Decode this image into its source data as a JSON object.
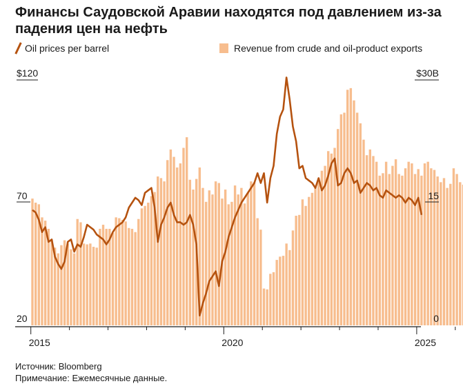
{
  "title": "Финансы Саудовской Аравии находятся под давлением из-за падения цен на нефть",
  "legend": {
    "line_label": "Oil prices per barrel",
    "bar_label": "Revenue from crude and oil-product exports"
  },
  "footer": {
    "source": "Источник: Bloomberg",
    "note": "Примечание: Ежемесячные данные."
  },
  "colors": {
    "line": "#b5520f",
    "bars": "#f7bd8e",
    "axis": "#1a1a1a"
  },
  "chart_data": {
    "type": "bar+line",
    "x_start": "2015-01",
    "x_ticks": [
      "2015",
      "2020",
      "2025"
    ],
    "left_axis": {
      "label_top": "$120",
      "ticks": [
        "70",
        "20"
      ],
      "range": [
        20,
        120
      ],
      "series": "Oil prices per barrel"
    },
    "right_axis": {
      "label_top": "$30B",
      "ticks": [
        "15",
        "0"
      ],
      "range": [
        0,
        30
      ],
      "series": "Revenue from crude and oil-product exports"
    },
    "series": [
      {
        "name": "Revenue from crude and oil-product exports",
        "type": "bar",
        "axis": "right",
        "values": [
          15.5,
          15.0,
          14.8,
          13.2,
          12.8,
          11.8,
          10.5,
          9.5,
          8.8,
          9.8,
          10.4,
          10.0,
          9.3,
          8.8,
          13.0,
          12.6,
          10.0,
          9.9,
          10.0,
          9.6,
          9.5,
          11.8,
          12.3,
          11.8,
          11.8,
          11.3,
          13.2,
          13.1,
          12.9,
          12.7,
          11.9,
          11.8,
          11.4,
          13.0,
          14.3,
          14.6,
          15.0,
          15.8,
          16.3,
          18.2,
          18.0,
          17.6,
          20.2,
          21.5,
          20.6,
          19.3,
          19.8,
          21.7,
          23.0,
          17.8,
          16.6,
          17.9,
          19.3,
          16.8,
          15.1,
          16.5,
          16.0,
          17.6,
          17.4,
          15.5,
          16.6,
          14.8,
          15.1,
          17.1,
          16.0,
          16.8,
          14.9,
          16.2,
          17.6,
          17.5,
          13.1,
          11.7,
          4.5,
          4.4,
          6.3,
          6.5,
          8.0,
          8.4,
          8.5,
          10.0,
          9.2,
          11.6,
          13.4,
          13.5,
          15.4,
          14.6,
          15.7,
          16.2,
          16.9,
          18.0,
          18.9,
          19.5,
          21.3,
          21.0,
          21.7,
          24.0,
          25.8,
          26.0,
          28.8,
          29.0,
          27.5,
          26.0,
          24.7,
          22.7,
          20.8,
          21.5,
          20.7,
          20.0,
          18.3,
          18.6,
          20.0,
          18.5,
          19.5,
          20.3,
          18.5,
          18.3,
          19.2,
          20.0,
          19.8,
          18.5,
          19.1,
          18.3,
          19.8,
          20.0,
          19.2,
          19.0,
          18.2,
          17.5,
          18.0,
          16.8,
          17.3,
          19.2,
          18.5,
          17.5,
          17.2,
          16.8
        ]
      },
      {
        "name": "Oil prices per barrel",
        "type": "line",
        "axis": "left",
        "values": [
          67,
          66,
          63,
          58,
          60,
          54,
          55,
          48,
          45,
          43,
          46,
          54,
          55,
          50,
          53,
          52,
          56,
          61,
          60,
          59,
          57,
          56,
          55,
          53,
          55,
          58,
          60,
          61,
          62,
          64,
          68,
          70,
          72,
          71,
          69,
          74,
          75,
          76,
          68,
          54,
          61,
          64,
          68,
          70,
          65,
          62,
          62,
          61,
          62,
          65,
          61,
          53,
          24,
          29,
          33,
          38,
          40,
          42,
          36,
          46,
          50,
          56,
          60,
          64,
          67,
          70,
          72,
          74,
          76,
          78,
          82,
          78,
          82,
          70,
          80,
          85,
          98,
          105,
          108,
          121,
          112,
          101,
          95,
          84,
          85,
          80,
          79,
          78,
          76,
          80,
          75,
          77,
          81,
          86,
          88,
          77,
          78,
          82,
          84,
          82,
          78,
          79,
          74,
          76,
          78,
          77,
          75,
          76,
          73,
          72,
          75,
          74,
          73,
          72,
          73,
          72,
          70,
          72,
          71,
          69,
          72,
          65
        ]
      }
    ]
  }
}
